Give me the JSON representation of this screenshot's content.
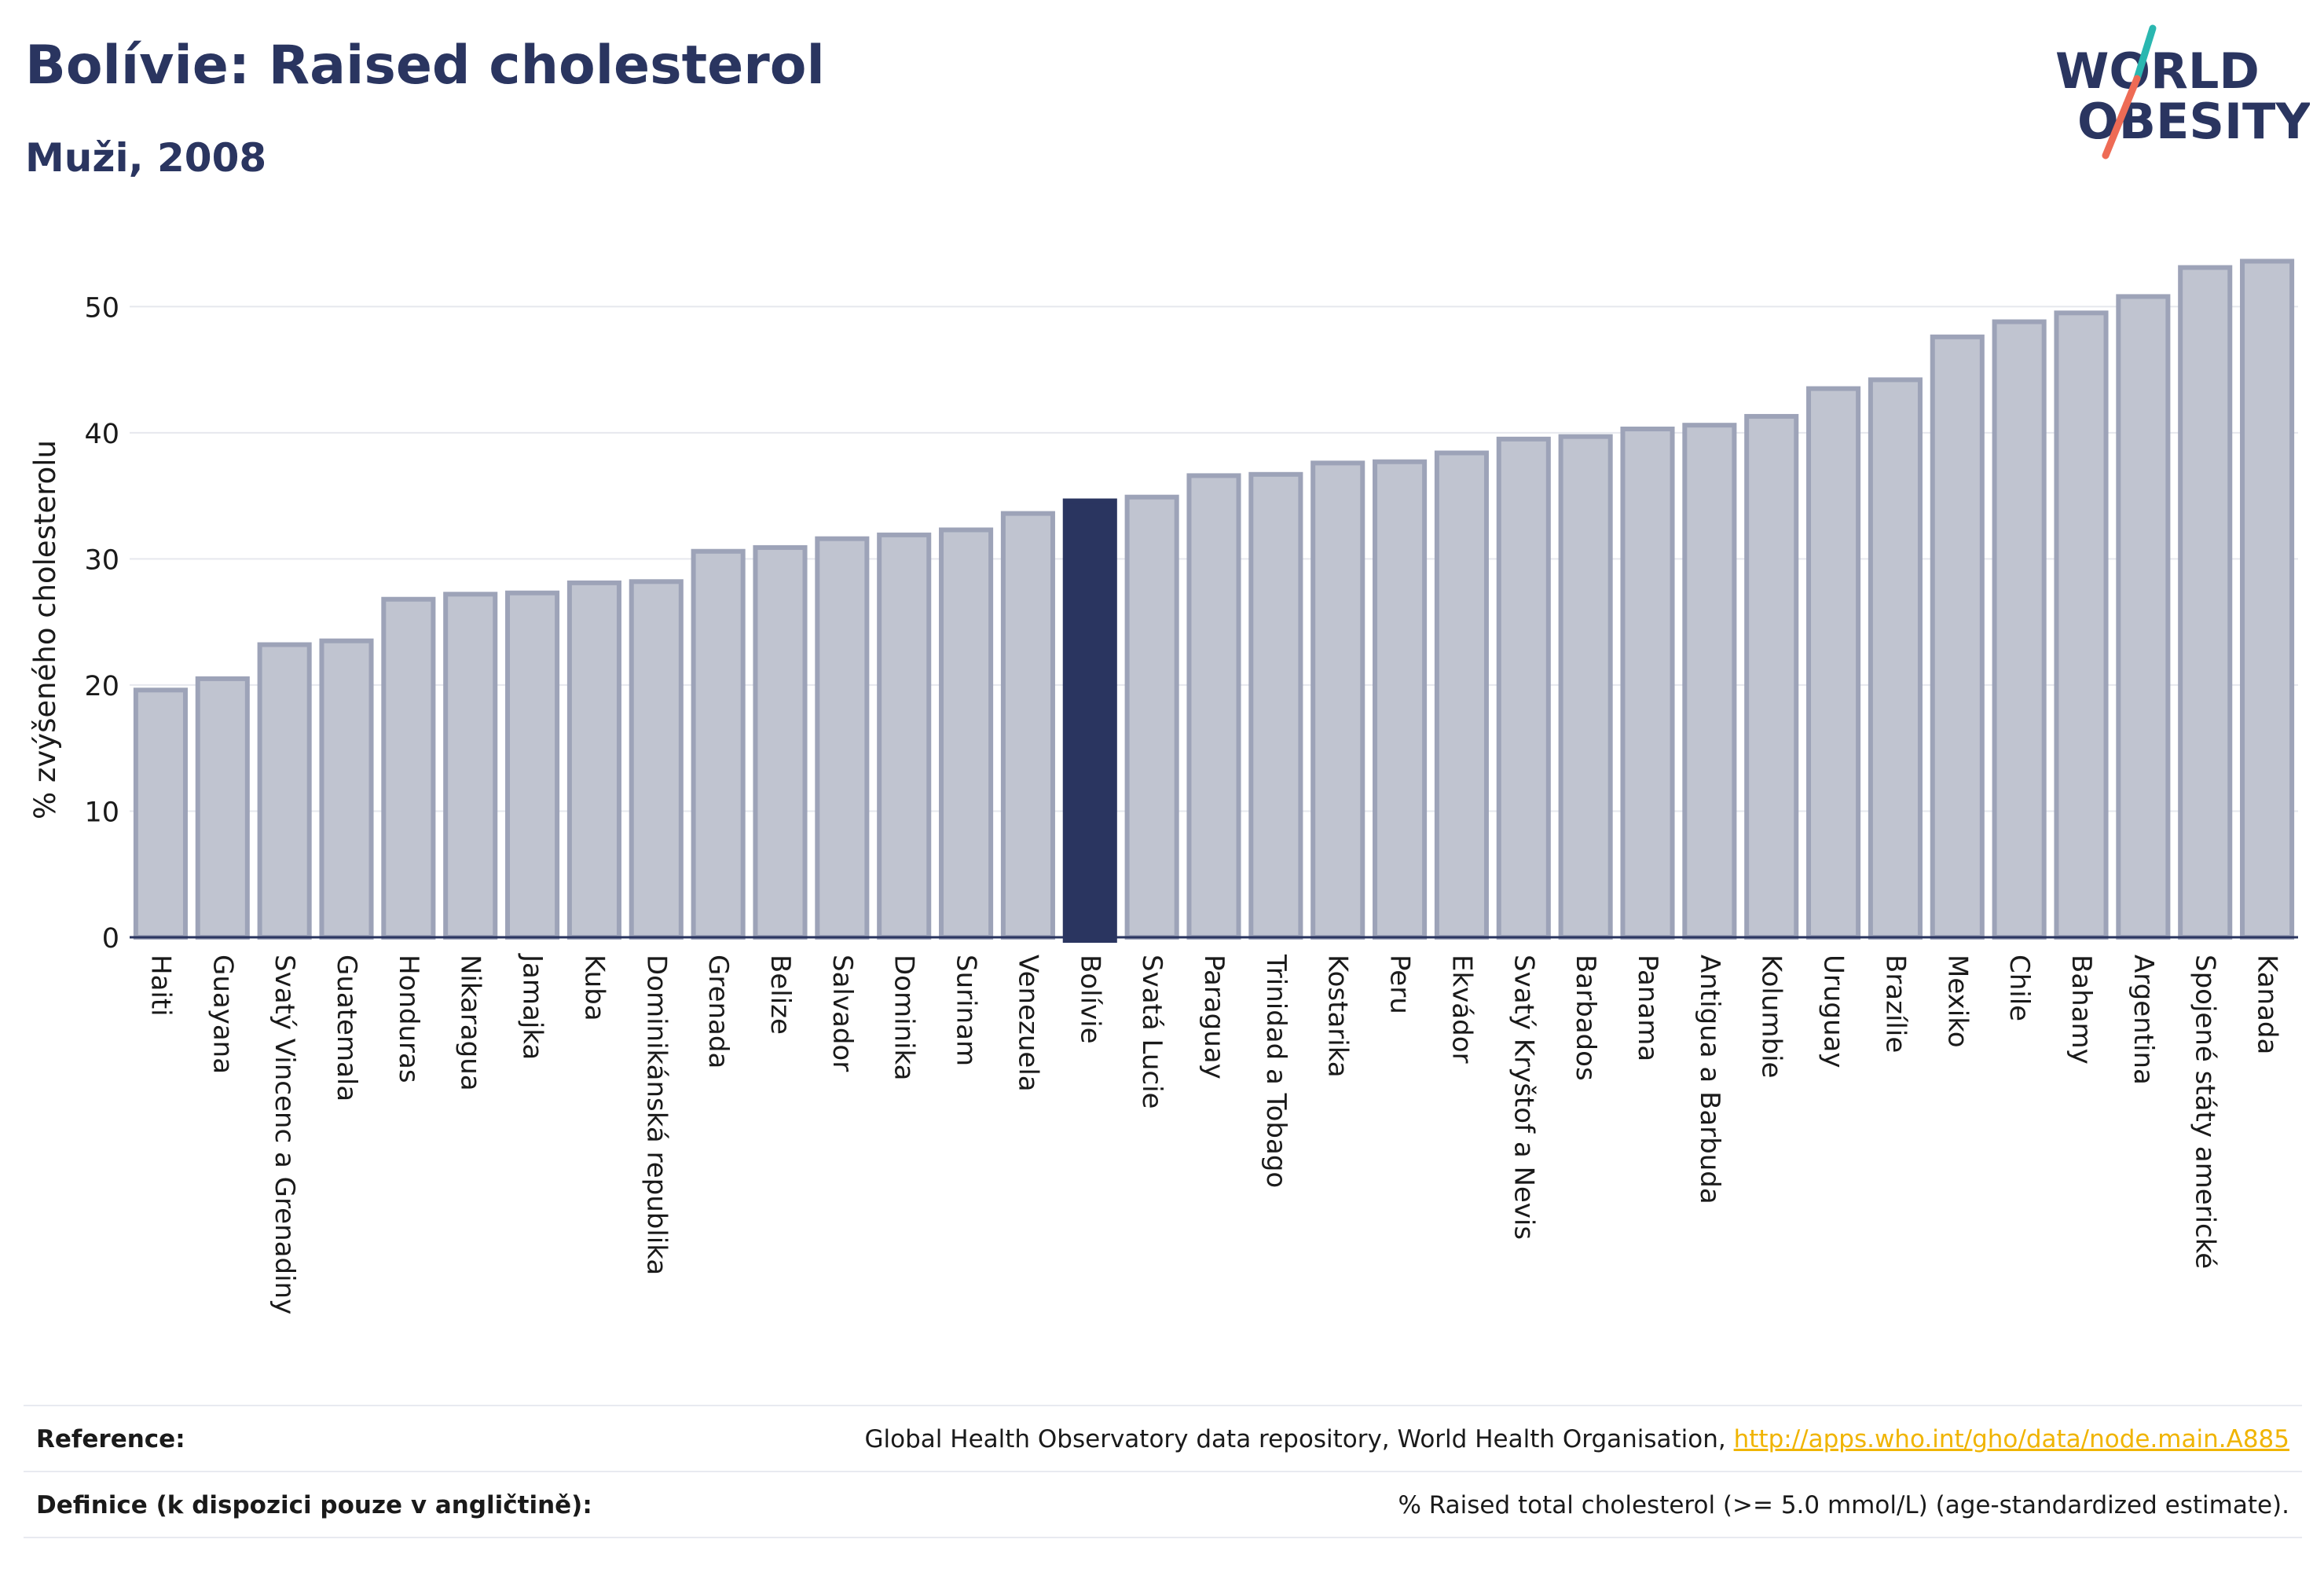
{
  "header": {
    "title": "Bolívie: Raised cholesterol",
    "subtitle": "Muži, 2008"
  },
  "logo": {
    "line1": "WORLD",
    "line2": "OBESITY"
  },
  "colors": {
    "highlight": "#2a3560",
    "bar_fill": "#c0c4d0",
    "bar_stroke": "#9da3b8",
    "text": "#2a3560"
  },
  "chart_data": {
    "type": "bar",
    "ylabel": "% zvýšeného cholesterolu",
    "ylim": [
      0,
      55
    ],
    "yticks": [
      0,
      10,
      20,
      30,
      40,
      50
    ],
    "grid": true,
    "highlight": "Bolívie",
    "categories": [
      "Haiti",
      "Guayana",
      "Svatý Vincenc a Grenadiny",
      "Guatemala",
      "Honduras",
      "Nikaragua",
      "Jamajka",
      "Kuba",
      "Dominikánská republika",
      "Grenada",
      "Belize",
      "Salvador",
      "Dominika",
      "Surinam",
      "Venezuela",
      "Bolívie",
      "Svatá Lucie",
      "Paraguay",
      "Trinidad a Tobago",
      "Kostarika",
      "Peru",
      "Ekvádor",
      "Svatý Kryštof a Nevis",
      "Barbados",
      "Panama",
      "Antigua a Barbuda",
      "Kolumbie",
      "Uruguay",
      "Brazílie",
      "Mexiko",
      "Chile",
      "Bahamy",
      "Argentina",
      "Spojené státy americké",
      "Kanada"
    ],
    "values": [
      19.6,
      20.5,
      23.2,
      23.5,
      26.8,
      27.2,
      27.3,
      28.1,
      28.2,
      30.6,
      30.9,
      31.6,
      31.9,
      32.3,
      33.6,
      34.6,
      34.9,
      36.6,
      36.7,
      37.6,
      37.7,
      38.4,
      39.5,
      39.7,
      40.3,
      40.6,
      41.3,
      43.5,
      44.2,
      47.6,
      48.8,
      49.5,
      50.8,
      53.1,
      53.6
    ]
  },
  "footer": {
    "reference_label": "Reference:",
    "reference_text": "Global Health Observatory data repository, World Health Organisation, ",
    "reference_link": "http://apps.who.int/gho/data/node.main.A885",
    "definition_label": "Definice (k dispozici pouze v angličtině):",
    "definition_text": "% Raised total cholesterol (>= 5.0 mmol/L) (age-standardized estimate)."
  }
}
